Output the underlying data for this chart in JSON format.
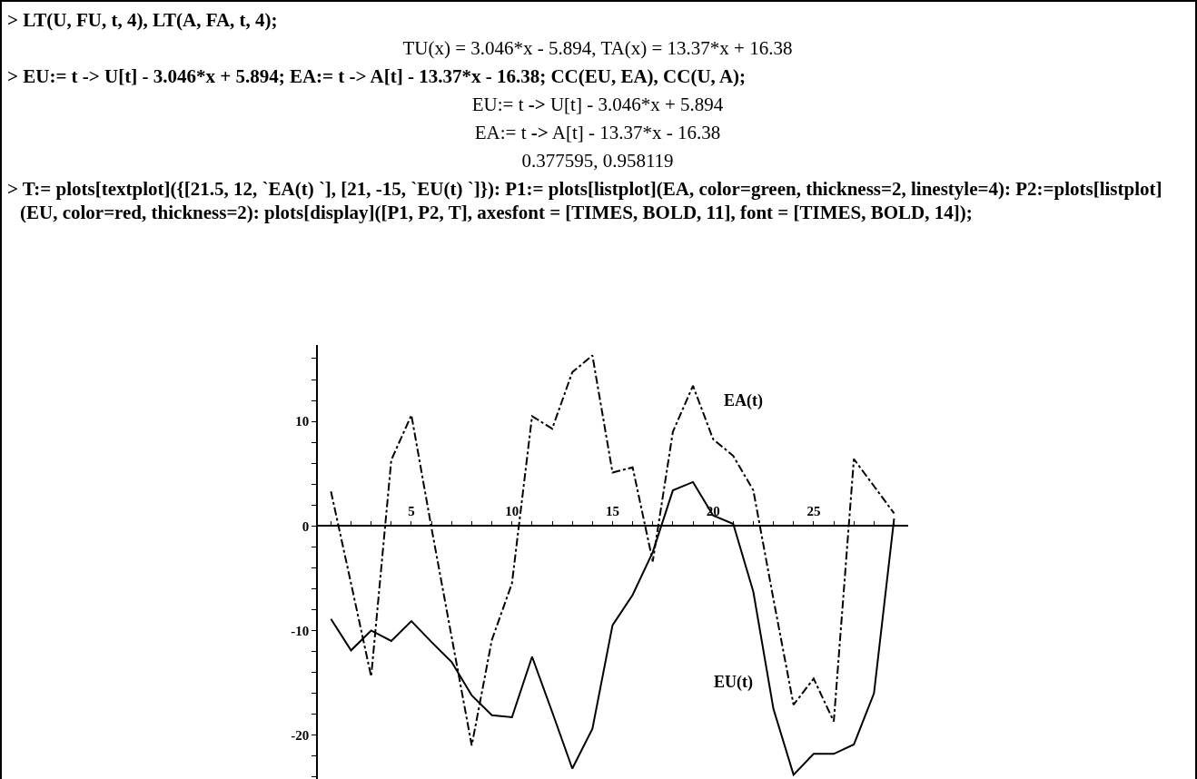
{
  "chart_data": {
    "type": "line",
    "annotations": [
      "> LT(U, FU, t, 4),  LT(A, FA, t, 4);",
      "TU(x) = 3.046*x - 5.894,  TA(x) = 13.37*x + 16.38",
      "> EU:= t -> U[t] - 3.046*x + 5.894;  EA:= t -> A[t] - 13.37*x - 16.38;  CC(EU, EA),  CC(U, A);",
      "EU:= t -> U[t] - 3.046*x + 5.894",
      "EA:= t -> A[t] - 13.37*x - 16.38",
      "0.377595,  0.958119",
      "> T:= plots[textplot]({[21.5, 12, `EA(t) `], [21, -15, `EU(t) `]}):  P1:= plots[listplot](EA, color=green, thickness=2, linestyle=4):  P2:=plots[listplot](EU, color=red, thickness=2):  plots[display]([P1, P2, T], axesfont = [TIMES, BOLD, 11], font = [TIMES, BOLD, 14]);",
      "EA(t)",
      "EU(t)"
    ],
    "x": [
      1,
      2,
      3,
      4,
      5,
      6,
      7,
      8,
      9,
      10,
      11,
      12,
      13,
      14,
      15,
      16,
      17,
      18,
      19,
      20,
      21,
      22,
      23,
      24,
      25,
      26,
      27,
      28,
      29
    ],
    "series": [
      {
        "color": "#000000",
        "line_style": "dashdot",
        "values": [
          3.3,
          -5.5,
          -14.4,
          6.3,
          10.6,
          -0.2,
          -10.6,
          -21.0,
          -10.9,
          -5.5,
          10.5,
          9.3,
          14.7,
          16.3,
          5.1,
          5.6,
          -3.4,
          9.0,
          13.4,
          8.3,
          6.7,
          3.4,
          -7.0,
          -17.1,
          -14.6,
          -18.7,
          6.4,
          3.8,
          1.2
        ]
      },
      {
        "color": "#000000",
        "line_style": "solid",
        "values": [
          -8.9,
          -11.9,
          -10.0,
          -11.0,
          -9.1,
          -11.1,
          -13.0,
          -16.2,
          -18.1,
          -18.3,
          -12.5,
          -17.8,
          -23.2,
          -19.4,
          -9.5,
          -6.6,
          -2.5,
          3.4,
          4.2,
          1.0,
          0.2,
          -6.3,
          -17.5,
          -23.8,
          -21.8,
          -21.8,
          -20.9,
          -16.0,
          0.7
        ]
      }
    ],
    "xlim": [
      0.35,
      29.7
    ],
    "ylim": [
      -24.2,
      17.3
    ],
    "xticks": [
      {
        "value": 1,
        "label": null
      },
      {
        "value": 2,
        "label": null
      },
      {
        "value": 3,
        "label": null
      },
      {
        "value": 4,
        "label": null
      },
      5,
      {
        "value": 6,
        "label": null
      },
      {
        "value": 7,
        "label": null
      },
      {
        "value": 8,
        "label": null
      },
      {
        "value": 9,
        "label": null
      },
      10,
      {
        "value": 11,
        "label": null
      },
      {
        "value": 12,
        "label": null
      },
      {
        "value": 13,
        "label": null
      },
      {
        "value": 14,
        "label": null
      },
      15,
      {
        "value": 16,
        "label": null
      },
      {
        "value": 17,
        "label": null
      },
      {
        "value": 18,
        "label": null
      },
      {
        "value": 19,
        "label": null
      },
      20,
      {
        "value": 21,
        "label": null
      },
      {
        "value": 22,
        "label": null
      },
      {
        "value": 23,
        "label": null
      },
      {
        "value": 24,
        "label": null
      },
      25,
      {
        "value": 26,
        "label": null
      },
      {
        "value": 27,
        "label": null
      },
      {
        "value": 28,
        "label": null
      },
      {
        "value": 29,
        "label": null
      }
    ],
    "yticks": [
      {
        "value": -24,
        "label": null
      },
      {
        "value": -22,
        "label": null
      },
      -20,
      {
        "value": -18,
        "label": null
      },
      {
        "value": -16,
        "label": null
      },
      {
        "value": -14,
        "label": null
      },
      {
        "value": -12,
        "label": null
      },
      -10,
      {
        "value": -8,
        "label": null
      },
      {
        "value": -6,
        "label": null
      },
      {
        "value": -4,
        "label": null
      },
      {
        "value": -2,
        "label": null
      },
      0,
      {
        "value": 2,
        "label": null
      },
      {
        "value": 4,
        "label": null
      },
      {
        "value": 6,
        "label": null
      },
      {
        "value": 8,
        "label": null
      },
      10,
      {
        "value": 12,
        "label": null
      },
      {
        "value": 14,
        "label": null
      },
      {
        "value": 16,
        "label": null
      }
    ],
    "grid": false,
    "marker": "none"
  }
}
